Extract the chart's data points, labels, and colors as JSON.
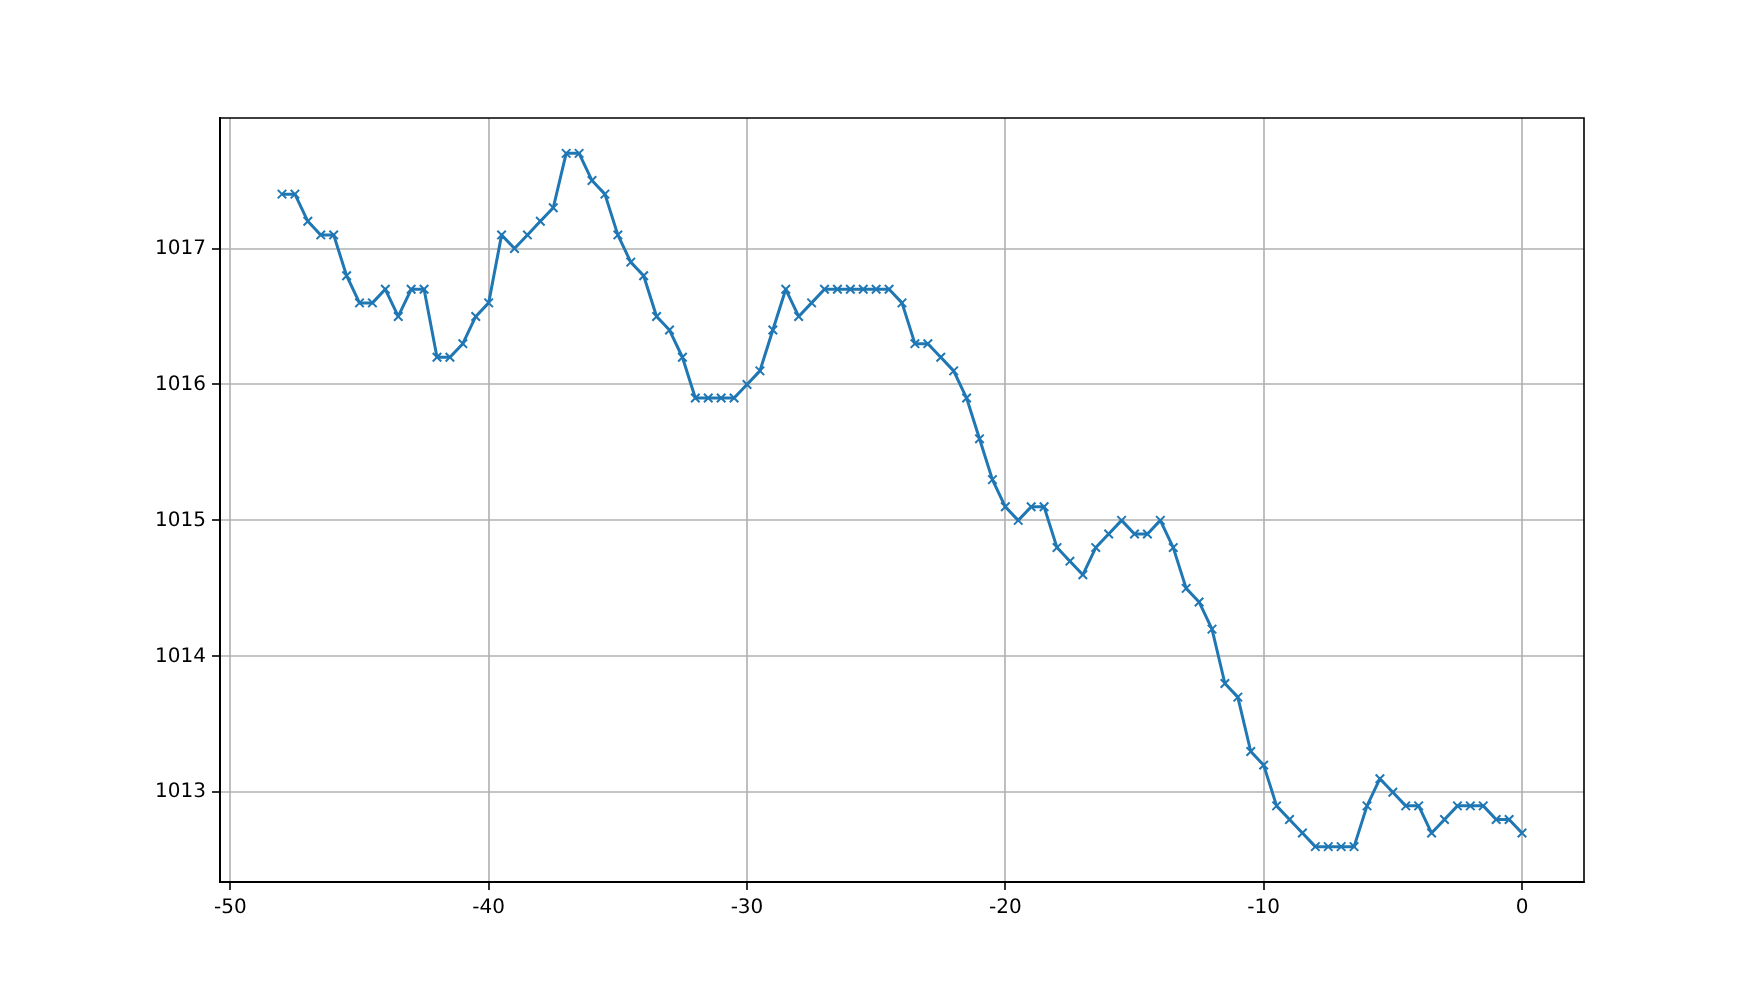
{
  "chart_data": {
    "type": "line",
    "x": [
      -48,
      -47.5,
      -47,
      -46.5,
      -46,
      -45.5,
      -45,
      -44.5,
      -44,
      -43.5,
      -43,
      -42.5,
      -42,
      -41.5,
      -41,
      -40.5,
      -40,
      -39.5,
      -39,
      -38.5,
      -38,
      -37.5,
      -37,
      -36.5,
      -36,
      -35.5,
      -35,
      -34.5,
      -34,
      -33.5,
      -33,
      -32.5,
      -32,
      -31.5,
      -31,
      -30.5,
      -30,
      -29.5,
      -29,
      -28.5,
      -28,
      -27.5,
      -27,
      -26.5,
      -26,
      -25.5,
      -25,
      -24.5,
      -24,
      -23.5,
      -23,
      -22.5,
      -22,
      -21.5,
      -21,
      -20.5,
      -20,
      -19.5,
      -19,
      -18.5,
      -18,
      -17.5,
      -17,
      -16.5,
      -16,
      -15.5,
      -15,
      -14.5,
      -14,
      -13.5,
      -13,
      -12.5,
      -12,
      -11.5,
      -11,
      -10.5,
      -10,
      -9.5,
      -9,
      -8.5,
      -8,
      -7.5,
      -7,
      -6.5,
      -6,
      -5.5,
      -5,
      -4.5,
      -4,
      -3.5,
      -3,
      -2.5,
      -2,
      -1.5,
      -1,
      -0.5,
      0
    ],
    "series": [
      {
        "color": "#1f77b4",
        "values": [
          1017.4,
          1017.4,
          1017.2,
          1017.1,
          1017.1,
          1016.8,
          1016.6,
          1016.6,
          1016.7,
          1016.5,
          1016.7,
          1016.7,
          1016.2,
          1016.2,
          1016.3,
          1016.5,
          1016.6,
          1017.1,
          1017.0,
          1017.1,
          1017.2,
          1017.3,
          1017.7,
          1017.7,
          1017.5,
          1017.4,
          1017.1,
          1016.9,
          1016.8,
          1016.5,
          1016.4,
          1016.2,
          1015.9,
          1015.9,
          1015.9,
          1015.9,
          1016.0,
          1016.1,
          1016.4,
          1016.7,
          1016.5,
          1016.6,
          1016.7,
          1016.7,
          1016.7,
          1016.7,
          1016.7,
          1016.7,
          1016.6,
          1016.3,
          1016.3,
          1016.2,
          1016.1,
          1015.9,
          1015.6,
          1015.3,
          1015.1,
          1015.0,
          1015.1,
          1015.1,
          1014.8,
          1014.7,
          1014.6,
          1014.8,
          1014.9,
          1015.0,
          1014.9,
          1014.9,
          1015.0,
          1014.8,
          1014.5,
          1014.4,
          1014.2,
          1013.8,
          1013.7,
          1013.3,
          1013.2,
          1012.9,
          1012.8,
          1012.7,
          1012.6,
          1012.6,
          1012.6,
          1012.6,
          1012.9,
          1013.1,
          1013.0,
          1012.9,
          1012.9,
          1012.7,
          1012.8,
          1012.9,
          1012.9,
          1012.9,
          1012.8,
          1012.8,
          1012.7
        ]
      }
    ],
    "xlim": [
      -50.4,
      2.4
    ],
    "xticks": [
      -50,
      -40,
      -30,
      -20,
      -10,
      0
    ],
    "ylim": [
      1012.34,
      1017.96
    ],
    "yticks": [
      1013,
      1014,
      1015,
      1016,
      1017
    ],
    "grid": true,
    "marker": "cross",
    "line_style": "solid",
    "legend": false
  }
}
